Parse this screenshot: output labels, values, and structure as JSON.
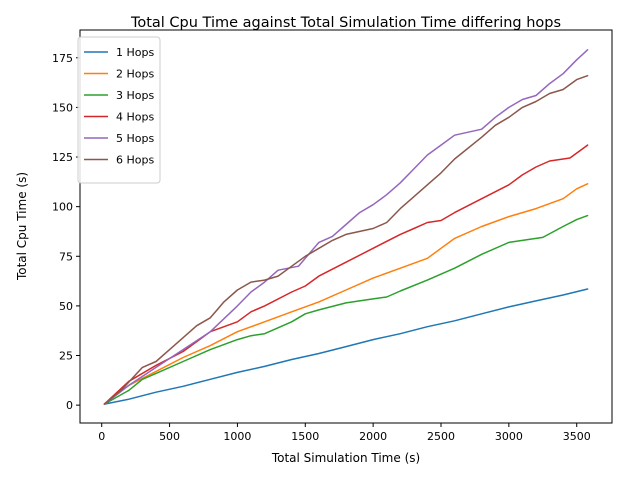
{
  "chart_data": {
    "type": "line",
    "title": "Total Cpu Time against Total Simulation Time differing hops",
    "xlabel": "Total Simulation Time (s)",
    "ylabel": "Total Cpu Time (s)",
    "xlim": [
      -160,
      3760
    ],
    "ylim": [
      -9,
      189
    ],
    "xticks": [
      0,
      500,
      1000,
      1500,
      2000,
      2500,
      3000,
      3500
    ],
    "yticks": [
      0,
      25,
      50,
      75,
      100,
      125,
      150,
      175
    ],
    "grid": false,
    "legend_position": "upper-left",
    "series": [
      {
        "name": "1 Hops",
        "color": "#1f77b4",
        "points": [
          [
            20,
            0.5
          ],
          [
            200,
            3
          ],
          [
            400,
            6.5
          ],
          [
            600,
            9.5
          ],
          [
            800,
            13
          ],
          [
            1000,
            16.5
          ],
          [
            1200,
            19.5
          ],
          [
            1400,
            23
          ],
          [
            1600,
            26
          ],
          [
            1800,
            29.5
          ],
          [
            2000,
            33
          ],
          [
            2200,
            36
          ],
          [
            2400,
            39.5
          ],
          [
            2600,
            42.5
          ],
          [
            2800,
            46
          ],
          [
            3000,
            49.5
          ],
          [
            3200,
            52.5
          ],
          [
            3400,
            55.5
          ],
          [
            3580,
            58.5
          ]
        ]
      },
      {
        "name": "2 Hops",
        "color": "#ff7f0e",
        "points": [
          [
            20,
            0.5
          ],
          [
            200,
            10
          ],
          [
            400,
            17
          ],
          [
            600,
            24
          ],
          [
            800,
            30
          ],
          [
            1000,
            37
          ],
          [
            1200,
            42
          ],
          [
            1400,
            47
          ],
          [
            1600,
            52
          ],
          [
            1800,
            58
          ],
          [
            2000,
            64
          ],
          [
            2200,
            69
          ],
          [
            2400,
            74
          ],
          [
            2500,
            79
          ],
          [
            2600,
            84
          ],
          [
            2800,
            90
          ],
          [
            3000,
            95
          ],
          [
            3200,
            99
          ],
          [
            3400,
            104
          ],
          [
            3500,
            109
          ],
          [
            3580,
            111.5
          ]
        ]
      },
      {
        "name": "3 Hops",
        "color": "#2ca02c",
        "points": [
          [
            20,
            0.5
          ],
          [
            200,
            7.5
          ],
          [
            300,
            13
          ],
          [
            400,
            16
          ],
          [
            600,
            22
          ],
          [
            800,
            28
          ],
          [
            1000,
            33
          ],
          [
            1100,
            35
          ],
          [
            1200,
            36
          ],
          [
            1400,
            42
          ],
          [
            1500,
            46
          ],
          [
            1600,
            48
          ],
          [
            1800,
            51.5
          ],
          [
            2000,
            53.5
          ],
          [
            2100,
            54.5
          ],
          [
            2200,
            57.5
          ],
          [
            2400,
            63
          ],
          [
            2600,
            69
          ],
          [
            2800,
            76
          ],
          [
            3000,
            82
          ],
          [
            3250,
            84.5
          ],
          [
            3400,
            90
          ],
          [
            3500,
            93.5
          ],
          [
            3580,
            95.5
          ]
        ]
      },
      {
        "name": "4 Hops",
        "color": "#d62728",
        "points": [
          [
            20,
            0.5
          ],
          [
            200,
            12
          ],
          [
            400,
            20
          ],
          [
            600,
            27
          ],
          [
            700,
            32
          ],
          [
            800,
            37
          ],
          [
            1000,
            42
          ],
          [
            1100,
            47
          ],
          [
            1200,
            50
          ],
          [
            1400,
            57
          ],
          [
            1500,
            60
          ],
          [
            1600,
            65
          ],
          [
            1800,
            72
          ],
          [
            2000,
            79
          ],
          [
            2200,
            86
          ],
          [
            2300,
            89
          ],
          [
            2400,
            92
          ],
          [
            2500,
            93
          ],
          [
            2600,
            97
          ],
          [
            2800,
            104
          ],
          [
            3000,
            111
          ],
          [
            3100,
            116
          ],
          [
            3200,
            120
          ],
          [
            3300,
            123
          ],
          [
            3450,
            124.5
          ],
          [
            3520,
            128
          ],
          [
            3580,
            131
          ]
        ]
      },
      {
        "name": "5 Hops",
        "color": "#9467bd",
        "points": [
          [
            20,
            0.5
          ],
          [
            200,
            10
          ],
          [
            400,
            19
          ],
          [
            600,
            28
          ],
          [
            800,
            37
          ],
          [
            1000,
            50
          ],
          [
            1100,
            57
          ],
          [
            1200,
            62
          ],
          [
            1300,
            68
          ],
          [
            1450,
            70
          ],
          [
            1550,
            78
          ],
          [
            1600,
            82
          ],
          [
            1700,
            85
          ],
          [
            1800,
            91
          ],
          [
            1900,
            97
          ],
          [
            2000,
            101
          ],
          [
            2100,
            106
          ],
          [
            2200,
            112
          ],
          [
            2300,
            119
          ],
          [
            2400,
            126
          ],
          [
            2500,
            131
          ],
          [
            2600,
            136
          ],
          [
            2800,
            139
          ],
          [
            2900,
            145
          ],
          [
            3000,
            150
          ],
          [
            3100,
            154
          ],
          [
            3200,
            156
          ],
          [
            3300,
            162
          ],
          [
            3400,
            167
          ],
          [
            3500,
            174
          ],
          [
            3580,
            179
          ]
        ]
      },
      {
        "name": "6 Hops",
        "color": "#8c564b",
        "points": [
          [
            20,
            0.5
          ],
          [
            150,
            8
          ],
          [
            300,
            19
          ],
          [
            400,
            22
          ],
          [
            500,
            28
          ],
          [
            600,
            34
          ],
          [
            700,
            40
          ],
          [
            800,
            44
          ],
          [
            850,
            48
          ],
          [
            900,
            52
          ],
          [
            1000,
            58
          ],
          [
            1100,
            62
          ],
          [
            1200,
            63
          ],
          [
            1300,
            65
          ],
          [
            1400,
            70
          ],
          [
            1500,
            75
          ],
          [
            1600,
            79
          ],
          [
            1700,
            83
          ],
          [
            1800,
            86
          ],
          [
            2000,
            89
          ],
          [
            2100,
            92
          ],
          [
            2200,
            99
          ],
          [
            2300,
            105
          ],
          [
            2400,
            111
          ],
          [
            2500,
            117
          ],
          [
            2600,
            124
          ],
          [
            2800,
            135
          ],
          [
            2900,
            141
          ],
          [
            3000,
            145
          ],
          [
            3100,
            150
          ],
          [
            3200,
            153
          ],
          [
            3300,
            157
          ],
          [
            3400,
            159
          ],
          [
            3500,
            164
          ],
          [
            3580,
            166
          ]
        ]
      }
    ]
  }
}
